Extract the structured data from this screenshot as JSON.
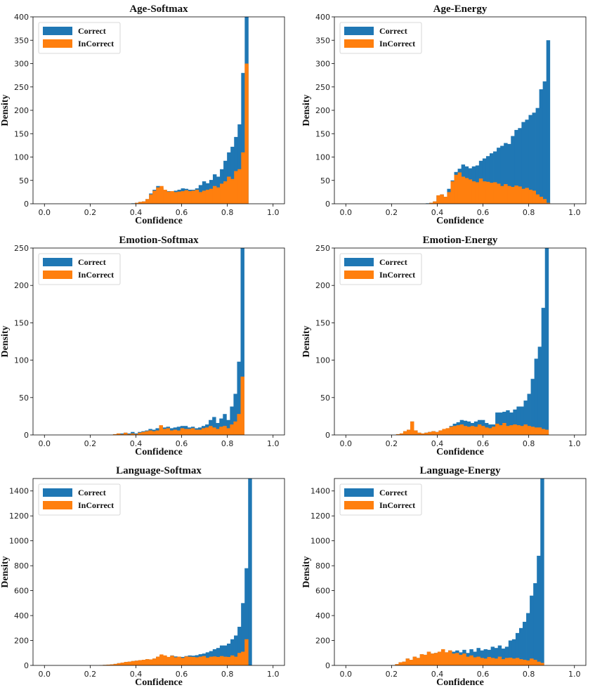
{
  "figure": {
    "colors": {
      "correct": "#1f77b4",
      "incorrect": "#ff7f0e"
    }
  },
  "chart_data": [
    {
      "type": "bar",
      "title": "Age-Softmax",
      "xlabel": "Confidence",
      "ylabel": "Density",
      "xlim": [
        0,
        1
      ],
      "ylim": [
        0,
        400
      ],
      "xticks": [
        "0.0",
        "0.2",
        "0.4",
        "0.6",
        "0.8",
        "1.0"
      ],
      "yticks": [
        "0",
        "50",
        "100",
        "150",
        "200",
        "250",
        "300",
        "350",
        "400"
      ],
      "legend": {
        "position": "top-left",
        "entries": [
          "Correct",
          "InCorrect"
        ]
      },
      "bin_start": 0.38,
      "bin_width": 0.0155,
      "series": [
        {
          "name": "Correct",
          "values": [
            1,
            2,
            4,
            5,
            10,
            22,
            30,
            38,
            34,
            29,
            27,
            25,
            28,
            30,
            33,
            32,
            30,
            30,
            33,
            40,
            48,
            44,
            51,
            63,
            58,
            74,
            92,
            110,
            122,
            143,
            170,
            280,
            400
          ]
        },
        {
          "name": "InCorrect",
          "values": [
            0,
            2,
            4,
            5,
            10,
            20,
            28,
            35,
            38,
            30,
            26,
            27,
            25,
            26,
            27,
            29,
            27,
            28,
            30,
            25,
            28,
            30,
            32,
            38,
            35,
            43,
            48,
            58,
            53,
            70,
            74,
            110,
            300
          ]
        }
      ]
    },
    {
      "type": "bar",
      "title": "Age-Energy",
      "xlabel": "Confidence",
      "ylabel": "Density",
      "xlim": [
        0,
        1
      ],
      "ylim": [
        0,
        400
      ],
      "xticks": [
        "0.0",
        "0.2",
        "0.4",
        "0.6",
        "0.8",
        "1.0"
      ],
      "yticks": [
        "0",
        "50",
        "100",
        "150",
        "200",
        "250",
        "300",
        "350",
        "400"
      ],
      "legend": {
        "position": "top-left",
        "entries": [
          "Correct",
          "InCorrect"
        ]
      },
      "bin_start": 0.35,
      "bin_width": 0.0155,
      "series": [
        {
          "name": "Correct",
          "values": [
            1,
            2,
            5,
            18,
            20,
            15,
            32,
            50,
            68,
            75,
            84,
            80,
            76,
            80,
            82,
            92,
            97,
            102,
            108,
            112,
            120,
            124,
            130,
            128,
            145,
            158,
            162,
            175,
            180,
            190,
            195,
            205,
            245,
            262,
            350
          ]
        },
        {
          "name": "InCorrect",
          "values": [
            0,
            2,
            5,
            18,
            20,
            15,
            25,
            48,
            62,
            67,
            58,
            55,
            52,
            48,
            46,
            54,
            48,
            47,
            45,
            46,
            43,
            38,
            42,
            38,
            36,
            39,
            37,
            32,
            34,
            30,
            28,
            20,
            15,
            10,
            2
          ]
        }
      ]
    },
    {
      "type": "bar",
      "title": "Emotion-Softmax",
      "xlabel": "Confidence",
      "ylabel": "Density",
      "xlim": [
        0,
        1
      ],
      "ylim": [
        0,
        250
      ],
      "xticks": [
        "0.0",
        "0.2",
        "0.4",
        "0.6",
        "0.8",
        "1.0"
      ],
      "yticks": [
        "0",
        "50",
        "100",
        "150",
        "200",
        "250"
      ],
      "legend": {
        "position": "top-left",
        "entries": [
          "Correct",
          "InCorrect"
        ]
      },
      "bin_start": 0.3,
      "bin_width": 0.0155,
      "series": [
        {
          "name": "Correct",
          "values": [
            1,
            2,
            2,
            3,
            2,
            4,
            2,
            4,
            5,
            6,
            8,
            7,
            9,
            12,
            10,
            11,
            9,
            10,
            11,
            12,
            12,
            10,
            11,
            9,
            10,
            12,
            14,
            20,
            24,
            16,
            22,
            28,
            20,
            38,
            55,
            98,
            255
          ]
        },
        {
          "name": "InCorrect",
          "values": [
            1,
            2,
            1,
            3,
            1,
            2,
            1,
            3,
            4,
            5,
            6,
            5,
            6,
            13,
            8,
            9,
            6,
            7,
            6,
            9,
            8,
            8,
            9,
            7,
            7,
            9,
            10,
            12,
            10,
            8,
            11,
            12,
            9,
            14,
            18,
            28,
            78
          ]
        }
      ]
    },
    {
      "type": "bar",
      "title": "Emotion-Energy",
      "xlabel": "Confidence",
      "ylabel": "Density",
      "xlim": [
        0,
        1
      ],
      "ylim": [
        0,
        250
      ],
      "xticks": [
        "0.0",
        "0.2",
        "0.4",
        "0.6",
        "0.8",
        "1.0"
      ],
      "yticks": [
        "0",
        "50",
        "100",
        "150",
        "200",
        "250"
      ],
      "legend": {
        "position": "top-left",
        "entries": [
          "Correct",
          "InCorrect"
        ]
      },
      "bin_start": 0.22,
      "bin_width": 0.0155,
      "series": [
        {
          "name": "Correct",
          "values": [
            1,
            2,
            5,
            7,
            18,
            6,
            3,
            2,
            3,
            4,
            5,
            4,
            6,
            8,
            9,
            12,
            15,
            17,
            20,
            19,
            18,
            16,
            18,
            20,
            20,
            16,
            14,
            14,
            30,
            30,
            31,
            33,
            30,
            34,
            38,
            38,
            46,
            55,
            75,
            102,
            118,
            170,
            255
          ]
        },
        {
          "name": "InCorrect",
          "values": [
            1,
            2,
            5,
            7,
            18,
            6,
            3,
            2,
            3,
            4,
            5,
            4,
            6,
            8,
            9,
            11,
            12,
            13,
            14,
            12,
            11,
            12,
            11,
            14,
            12,
            10,
            9,
            11,
            15,
            13,
            16,
            12,
            13,
            14,
            13,
            12,
            14,
            12,
            11,
            10,
            10,
            8,
            7
          ]
        }
      ]
    },
    {
      "type": "bar",
      "title": "Language-Softmax",
      "xlabel": "Confidence",
      "ylabel": "Density",
      "xlim": [
        0,
        1
      ],
      "ylim": [
        0,
        1500
      ],
      "xticks": [
        "0.0",
        "0.2",
        "0.4",
        "0.6",
        "0.8",
        "1.0"
      ],
      "yticks": [
        "0",
        "200",
        "400",
        "600",
        "800",
        "1000",
        "1200",
        "1400"
      ],
      "legend": {
        "position": "top-left",
        "entries": [
          "Correct",
          "InCorrect"
        ]
      },
      "bin_start": 0.24,
      "bin_width": 0.0155,
      "series": [
        {
          "name": "Correct",
          "values": [
            2,
            4,
            6,
            8,
            12,
            18,
            22,
            28,
            30,
            35,
            38,
            42,
            45,
            50,
            48,
            55,
            70,
            80,
            75,
            68,
            80,
            72,
            70,
            68,
            75,
            80,
            78,
            82,
            90,
            95,
            105,
            115,
            130,
            140,
            160,
            160,
            175,
            210,
            240,
            310,
            500,
            780,
            1500
          ]
        },
        {
          "name": "InCorrect",
          "values": [
            2,
            4,
            6,
            8,
            12,
            18,
            22,
            28,
            30,
            35,
            38,
            42,
            45,
            50,
            48,
            55,
            70,
            88,
            80,
            68,
            78,
            65,
            70,
            60,
            72,
            70,
            68,
            65,
            70,
            75,
            62,
            70,
            72,
            68,
            75,
            70,
            68,
            80,
            70,
            100,
            110,
            210,
            0
          ]
        }
      ]
    },
    {
      "type": "bar",
      "title": "Language-Energy",
      "xlabel": "Confidence",
      "ylabel": "Density",
      "xlim": [
        0,
        1
      ],
      "ylim": [
        0,
        1500
      ],
      "xticks": [
        "0.0",
        "0.2",
        "0.4",
        "0.6",
        "0.8",
        "1.0"
      ],
      "yticks": [
        "0",
        "200",
        "400",
        "600",
        "800",
        "1000",
        "1200",
        "1400"
      ],
      "legend": {
        "position": "top-left",
        "entries": [
          "Correct",
          "InCorrect"
        ]
      },
      "bin_start": 0.2,
      "bin_width": 0.0155,
      "series": [
        {
          "name": "Correct",
          "values": [
            2,
            10,
            25,
            30,
            55,
            45,
            70,
            60,
            90,
            85,
            110,
            95,
            100,
            110,
            130,
            105,
            120,
            110,
            120,
            105,
            125,
            100,
            130,
            110,
            140,
            120,
            130,
            125,
            150,
            140,
            160,
            135,
            150,
            200,
            210,
            260,
            300,
            350,
            420,
            560,
            660,
            880,
            1500
          ]
        },
        {
          "name": "InCorrect",
          "values": [
            2,
            10,
            25,
            30,
            55,
            45,
            70,
            60,
            90,
            85,
            110,
            95,
            100,
            110,
            130,
            105,
            120,
            95,
            100,
            85,
            95,
            70,
            80,
            65,
            70,
            60,
            55,
            68,
            60,
            55,
            70,
            50,
            60,
            62,
            55,
            60,
            50,
            45,
            40,
            55,
            45,
            30,
            20
          ]
        }
      ]
    }
  ]
}
